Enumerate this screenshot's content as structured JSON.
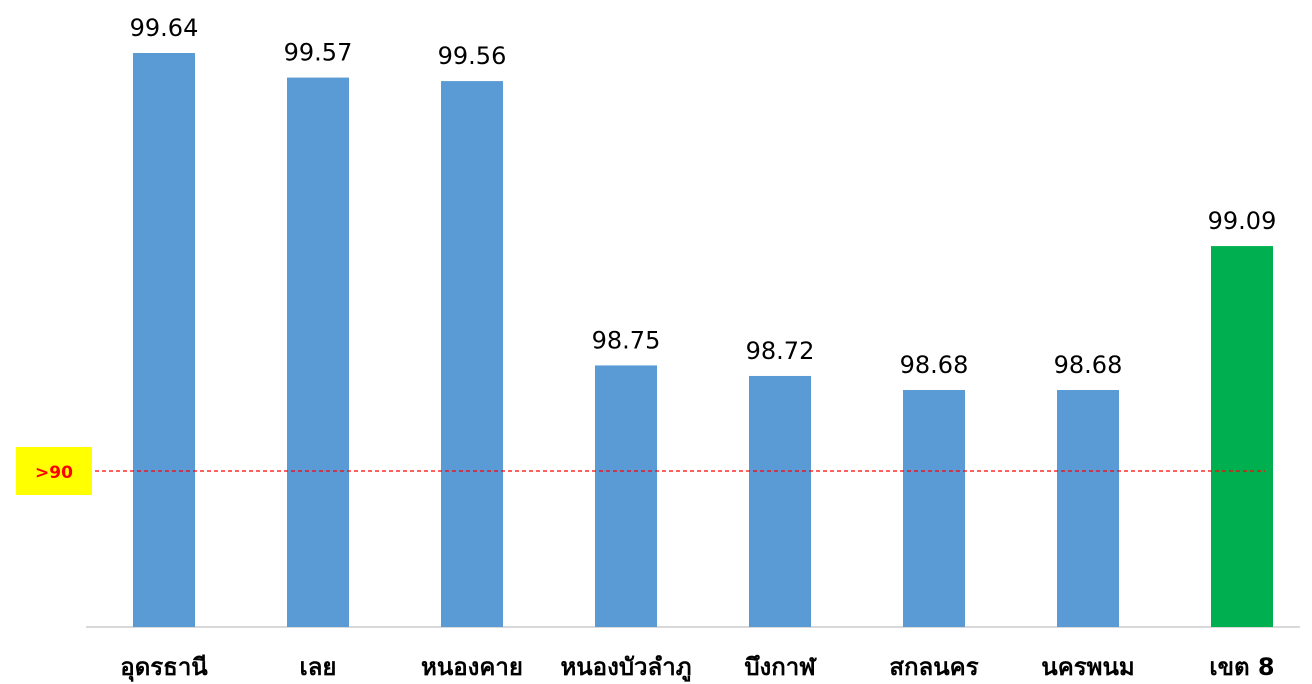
{
  "chart_data": {
    "type": "bar",
    "categories": [
      "อุดรธานี",
      "เลย",
      "หนองคาย",
      "หนองบัวลำภู",
      "บึงกาฬ",
      "สกลนคร",
      "นครพนม",
      "เขต 8"
    ],
    "values": [
      99.64,
      99.57,
      99.56,
      98.75,
      98.72,
      98.68,
      98.68,
      99.09
    ],
    "value_labels": [
      "99.64",
      "99.57",
      "99.56",
      "98.75",
      "98.72",
      "98.68",
      "98.68",
      "99.09"
    ],
    "title": "",
    "xlabel": "",
    "ylabel": "",
    "ylim": [
      97.5,
      99.8
    ],
    "grid": false,
    "reference_line": {
      "label": ">90",
      "value": 98.3,
      "color": "#FF0000",
      "label_bg": "#FFFF00",
      "label_color": "#FF0000"
    },
    "colors": {
      "default_bar": "#5B9BD5",
      "highlight_bar": "#00B050",
      "axis": "#D9D9D9",
      "value_label": "#000000",
      "category_label": "#000000"
    },
    "highlight_index": 7
  }
}
